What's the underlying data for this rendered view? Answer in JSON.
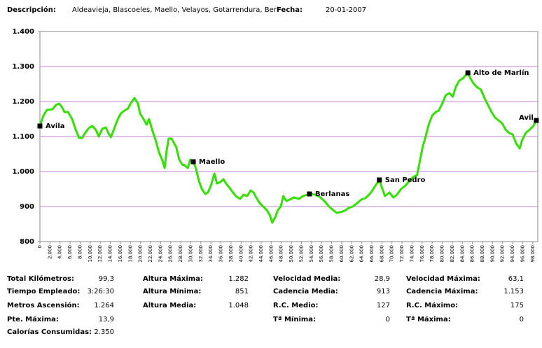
{
  "header": {
    "desc_label": "Descripción:",
    "desc": "Aldeavieja, Blascoeles, Maello, Velayos, Gotarrendura, Berl",
    "date_label": "Fecha:",
    "date": "20-01-2007"
  },
  "chart_data": {
    "type": "line",
    "color": "#33e000",
    "grid": true,
    "x": [
      0,
      700,
      1400,
      2500,
      3200,
      3800,
      4300,
      4900,
      5600,
      6400,
      7100,
      7800,
      8400,
      9000,
      9700,
      10400,
      11100,
      11700,
      12400,
      13100,
      13600,
      14100,
      14800,
      15500,
      16100,
      16800,
      17500,
      18100,
      18800,
      19500,
      19900,
      20600,
      21200,
      21700,
      22300,
      23000,
      23700,
      24400,
      24800,
      25200,
      25600,
      26200,
      26700,
      27100,
      27700,
      28300,
      28800,
      29400,
      29900,
      30500,
      31000,
      31600,
      32200,
      32900,
      33400,
      34000,
      34700,
      35200,
      35900,
      36500,
      37000,
      37700,
      38400,
      39100,
      39800,
      40500,
      41200,
      41900,
      42500,
      43000,
      43700,
      44400,
      45100,
      45700,
      46200,
      46800,
      47300,
      47900,
      48400,
      49000,
      49700,
      50500,
      51500,
      52300,
      53600,
      54800,
      55800,
      56700,
      57500,
      58300,
      59000,
      59700,
      60600,
      61400,
      62200,
      63100,
      63900,
      64700,
      65600,
      66300,
      66800,
      67500,
      68100,
      68600,
      69500,
      70300,
      71000,
      71800,
      72700,
      73500,
      74200,
      75000,
      75600,
      76100,
      76700,
      77300,
      78000,
      78700,
      79300,
      80000,
      80700,
      81400,
      82100,
      82700,
      83400,
      84100,
      84600,
      85100,
      85600,
      86300,
      87000,
      87700,
      88400,
      89100,
      89800,
      90500,
      91200,
      91900,
      92600,
      93300,
      94000,
      94700,
      95400,
      95900,
      96600,
      97400,
      98100,
      98700
    ],
    "values": [
      1130,
      1160,
      1176,
      1178,
      1190,
      1194,
      1186,
      1170,
      1170,
      1150,
      1120,
      1096,
      1096,
      1110,
      1124,
      1130,
      1120,
      1100,
      1122,
      1126,
      1110,
      1098,
      1124,
      1150,
      1166,
      1174,
      1180,
      1196,
      1210,
      1194,
      1166,
      1150,
      1134,
      1150,
      1120,
      1090,
      1054,
      1030,
      1010,
      1060,
      1094,
      1094,
      1080,
      1070,
      1034,
      1020,
      1018,
      1010,
      1034,
      1028,
      1010,
      974,
      950,
      936,
      940,
      960,
      994,
      966,
      970,
      978,
      966,
      954,
      940,
      928,
      922,
      934,
      930,
      946,
      940,
      926,
      910,
      900,
      890,
      876,
      854,
      870,
      890,
      900,
      930,
      916,
      920,
      926,
      922,
      930,
      936,
      934,
      926,
      914,
      900,
      890,
      882,
      884,
      888,
      896,
      900,
      910,
      920,
      924,
      936,
      950,
      962,
      976,
      950,
      930,
      940,
      926,
      934,
      950,
      960,
      974,
      984,
      990,
      1034,
      1070,
      1100,
      1134,
      1160,
      1170,
      1174,
      1194,
      1218,
      1224,
      1214,
      1242,
      1260,
      1266,
      1274,
      1282,
      1266,
      1250,
      1240,
      1234,
      1210,
      1190,
      1170,
      1154,
      1146,
      1138,
      1120,
      1110,
      1106,
      1080,
      1066,
      1090,
      1110,
      1120,
      1130,
      1146
    ],
    "xlim": [
      0,
      99000
    ],
    "ylim": [
      800,
      1400
    ],
    "yticks": [
      {
        "value": 800,
        "label": "800"
      },
      {
        "value": 900,
        "label": "900"
      },
      {
        "value": 1000,
        "label": "1.000"
      },
      {
        "value": 1100,
        "label": "1.100"
      },
      {
        "value": 1200,
        "label": "1.200"
      },
      {
        "value": 1300,
        "label": "1.300"
      },
      {
        "value": 1400,
        "label": "1.400"
      }
    ],
    "xticks": [
      0,
      {
        "value": 2000,
        "label": "2.000"
      },
      {
        "value": 4000,
        "label": "4.000"
      },
      {
        "value": 6000,
        "label": "6.000"
      },
      {
        "value": 8000,
        "label": "8.000"
      },
      {
        "value": 10000,
        "label": "10.000"
      },
      {
        "value": 12000,
        "label": "12.000"
      },
      {
        "value": 14000,
        "label": "14.000"
      },
      {
        "value": 16000,
        "label": "16.000"
      },
      {
        "value": 18000,
        "label": "18.000"
      },
      {
        "value": 20000,
        "label": "20.000"
      },
      {
        "value": 22000,
        "label": "22.000"
      },
      {
        "value": 24000,
        "label": "24.000"
      },
      {
        "value": 26000,
        "label": "26.000"
      },
      {
        "value": 28000,
        "label": "28.000"
      },
      {
        "value": 30000,
        "label": "30.000"
      },
      {
        "value": 32000,
        "label": "32.000"
      },
      {
        "value": 34000,
        "label": "34.000"
      },
      {
        "value": 36000,
        "label": "36.000"
      },
      {
        "value": 38000,
        "label": "38.000"
      },
      {
        "value": 40000,
        "label": "40.000"
      },
      {
        "value": 42000,
        "label": "42.000"
      },
      {
        "value": 44000,
        "label": "44.000"
      },
      {
        "value": 46000,
        "label": "46.000"
      },
      {
        "value": 48000,
        "label": "48.000"
      },
      {
        "value": 50000,
        "label": "50.000"
      },
      {
        "value": 52000,
        "label": "52.000"
      },
      {
        "value": 54000,
        "label": "54.000"
      },
      {
        "value": 56000,
        "label": "56.000"
      },
      {
        "value": 58000,
        "label": "58.000"
      },
      {
        "value": 60000,
        "label": "60.000"
      },
      {
        "value": 62000,
        "label": "62.000"
      },
      {
        "value": 64000,
        "label": "64.000"
      },
      {
        "value": 66000,
        "label": "66.000"
      },
      {
        "value": 68000,
        "label": "68.000"
      },
      {
        "value": 70000,
        "label": "70.000"
      },
      {
        "value": 72000,
        "label": "72.000"
      },
      {
        "value": 74000,
        "label": "74.000"
      },
      {
        "value": 76000,
        "label": "76.000"
      },
      {
        "value": 78000,
        "label": "78.000"
      },
      {
        "value": 80000,
        "label": "80.000"
      },
      {
        "value": 82000,
        "label": "82.000"
      },
      {
        "value": 84000,
        "label": "84.000"
      },
      {
        "value": 86000,
        "label": "86.000"
      },
      {
        "value": 88000,
        "label": "88.000"
      },
      {
        "value": 90000,
        "label": "90.000"
      },
      {
        "value": 92000,
        "label": "92.000"
      },
      {
        "value": 94000,
        "label": "94.000"
      },
      {
        "value": 96000,
        "label": "96.000"
      },
      {
        "value": 98000,
        "label": "98.000"
      }
    ],
    "waypoints": [
      {
        "label": "Avila",
        "x": 0,
        "y": 1130
      },
      {
        "label": "Maello",
        "x": 30500,
        "y": 1028
      },
      {
        "label": "Berlanas",
        "x": 53600,
        "y": 936
      },
      {
        "label": "San Pedro",
        "x": 67500,
        "y": 976
      },
      {
        "label": "Alto de Marlín",
        "x": 85100,
        "y": 1282
      },
      {
        "label": "Avil",
        "x": 98700,
        "y": 1146
      }
    ]
  },
  "stats": [
    [
      [
        "Total Kilómetros:",
        "99,3"
      ],
      [
        "Tiempo Empleado:",
        "3:26:30"
      ],
      [
        "Metros Ascensión:",
        "1.264"
      ],
      [
        "Pte. Máxima:",
        "13,9"
      ],
      [
        "Calorías Consumidas:",
        "2.350"
      ]
    ],
    [
      [
        "Altura Máxima:",
        "1.282"
      ],
      [
        "Altura Mínima:",
        "851"
      ],
      [
        "Altura Media:",
        "1.048"
      ]
    ],
    [
      [
        "Velocidad Media:",
        "28,9"
      ],
      [
        "Cadencia Media:",
        "913"
      ],
      [
        "R.C. Medio:",
        "127"
      ],
      [
        "Tª Mínima:",
        "0"
      ]
    ],
    [
      [
        "Velocidad Máxima:",
        "63,1"
      ],
      [
        "Cadencia Máxima:",
        "1.153"
      ],
      [
        "R.C.  Máximo:",
        "175"
      ],
      [
        "Tª Máxima:",
        "0"
      ]
    ]
  ]
}
